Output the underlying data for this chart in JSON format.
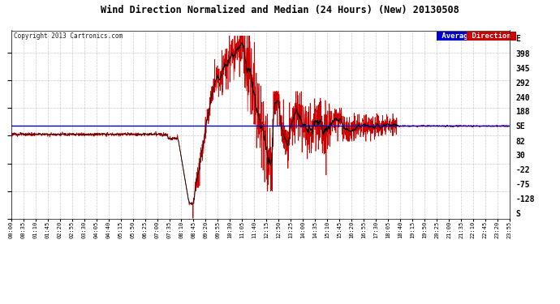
{
  "title": "Wind Direction Normalized and Median (24 Hours) (New) 20130508",
  "copyright": "Copyright 2013 Cartronics.com",
  "background_color": "#ffffff",
  "plot_bg_color": "#ffffff",
  "grid_color": "#aaaaaa",
  "yticks_right": [
    451,
    398,
    345,
    292,
    240,
    188,
    135,
    82,
    30,
    -22,
    -75,
    -128,
    -180
  ],
  "ytick_labels_right": [
    "E",
    "398",
    "345",
    "292",
    "240",
    "188",
    "SE",
    "82",
    "30",
    "-22",
    "-75",
    "-128",
    "S"
  ],
  "ylim": [
    -200,
    480
  ],
  "average_direction_value": 135,
  "legend_blue_label": "Average",
  "legend_red_label": "Direction",
  "time_labels": [
    "00:00",
    "00:35",
    "01:10",
    "01:45",
    "02:20",
    "02:55",
    "03:30",
    "04:05",
    "04:40",
    "05:15",
    "05:50",
    "06:25",
    "07:00",
    "07:35",
    "08:10",
    "08:45",
    "09:20",
    "09:55",
    "10:30",
    "11:05",
    "11:40",
    "12:15",
    "12:50",
    "13:25",
    "14:00",
    "14:35",
    "15:10",
    "15:45",
    "16:20",
    "16:55",
    "17:30",
    "18:05",
    "18:40",
    "19:15",
    "19:50",
    "20:25",
    "21:00",
    "21:35",
    "22:10",
    "22:45",
    "23:20",
    "23:55"
  ],
  "avg_line_color": "#0000bb",
  "red_line_color": "#cc0000",
  "black_line_color": "#000000"
}
